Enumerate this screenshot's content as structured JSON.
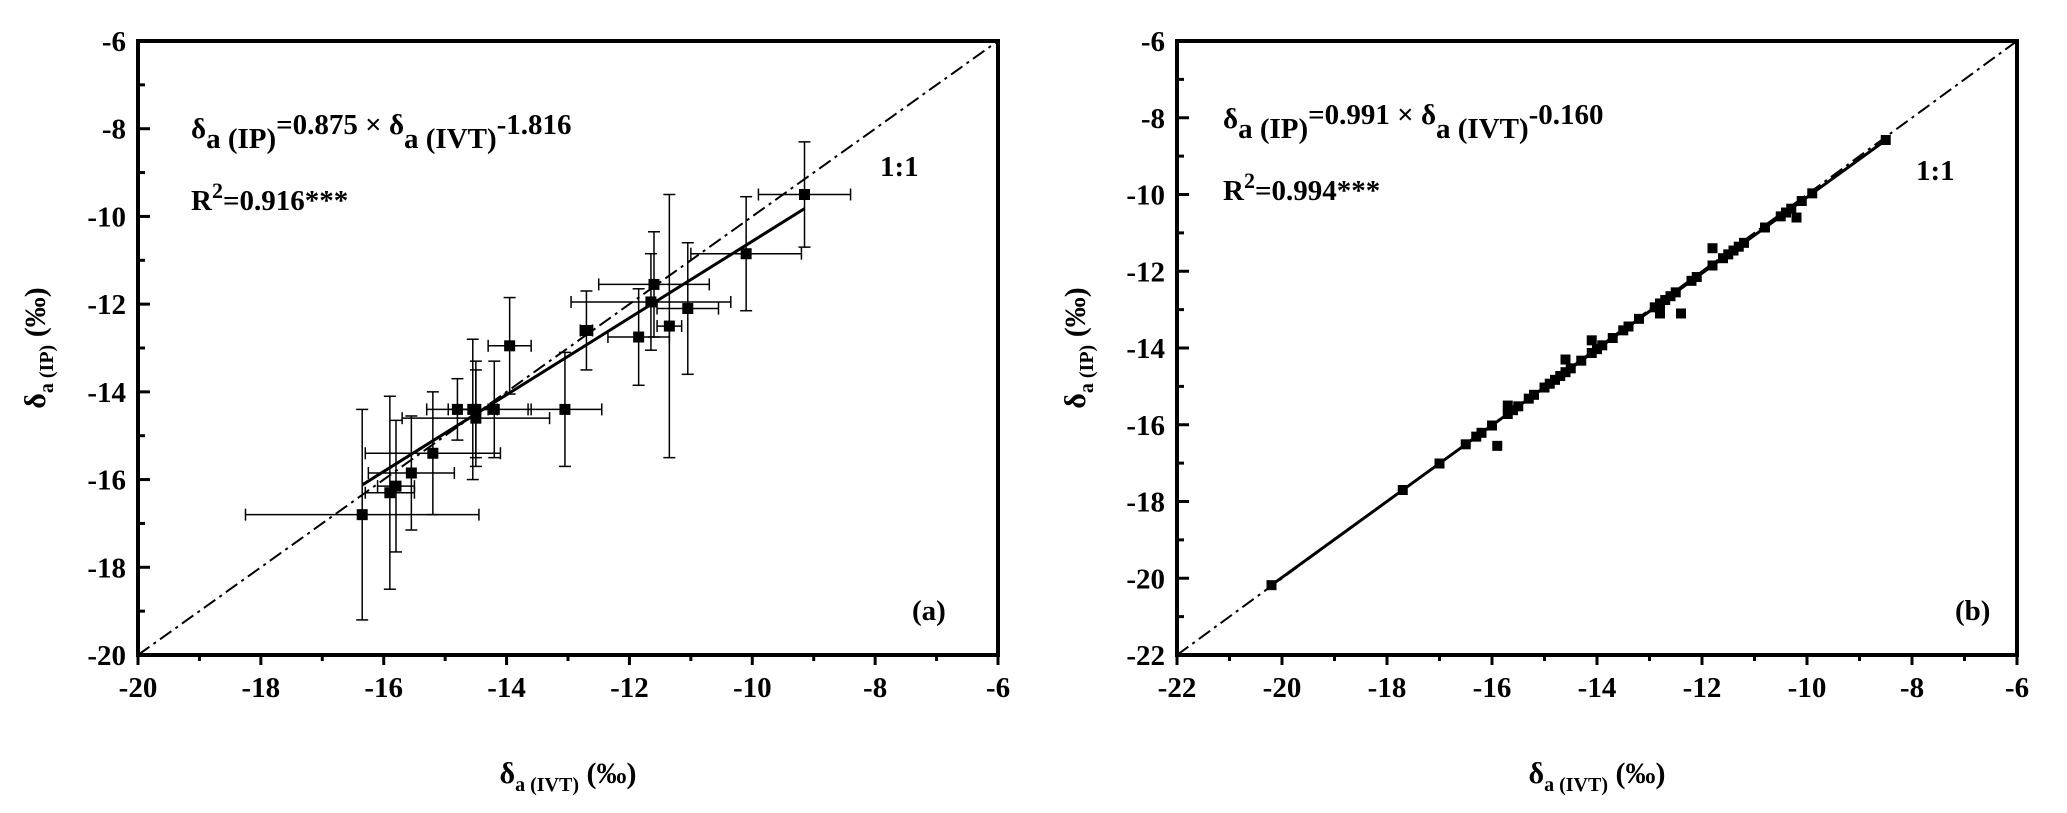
{
  "chart_data": [
    {
      "type": "scatter",
      "panel_label": "(a)",
      "xlabel": {
        "main": "δ",
        "sub": "a (IVT)",
        "unit": " (‰)"
      },
      "ylabel": {
        "main": "δ",
        "sub": "a (IP)",
        "unit": " (‰)"
      },
      "xlim": [
        -20,
        -6
      ],
      "ylim": [
        -20,
        -6
      ],
      "xticks": [
        "-20",
        "-18",
        "-16",
        "-14",
        "-12",
        "-10",
        "-8",
        "-6"
      ],
      "yticks": [
        "-20",
        "-18",
        "-16",
        "-14",
        "-12",
        "-10",
        "-8",
        "-6"
      ],
      "equation": {
        "lhs": "δ",
        "lhs_sub": "a (IP)",
        "mid": "=0.875 × δ",
        "rhs_sub": "a (IVT)",
        "const": "-1.816"
      },
      "r2": {
        "r": "R",
        "sup": "2",
        "value": "=0.916***"
      },
      "fit": {
        "slope": 0.875,
        "intercept": -1.816,
        "xrange": [
          -16.35,
          -9.15
        ]
      },
      "ref_line_label": "1:1",
      "points": [
        {
          "x": -16.35,
          "y": -16.8,
          "xerr": 1.9,
          "yerr": 2.4
        },
        {
          "x": -15.9,
          "y": -16.3,
          "xerr": 0.4,
          "yerr": 2.2
        },
        {
          "x": -15.8,
          "y": -16.15,
          "xerr": 0.3,
          "yerr": 1.5
        },
        {
          "x": -15.55,
          "y": -15.85,
          "xerr": 0.7,
          "yerr": 1.3
        },
        {
          "x": -15.2,
          "y": -15.4,
          "xerr": 1.1,
          "yerr": 1.4
        },
        {
          "x": -14.8,
          "y": -14.4,
          "xerr": 0.5,
          "yerr": 0.7
        },
        {
          "x": -14.55,
          "y": -14.4,
          "xerr": 0.4,
          "yerr": 1.6
        },
        {
          "x": -14.5,
          "y": -14.4,
          "xerr": 0.3,
          "yerr": 1.1
        },
        {
          "x": -14.5,
          "y": -14.6,
          "xerr": 1.2,
          "yerr": 1.1
        },
        {
          "x": -14.2,
          "y": -14.4,
          "xerr": 0.6,
          "yerr": 1.1
        },
        {
          "x": -13.95,
          "y": -12.95,
          "xerr": 0.35,
          "yerr": 1.1
        },
        {
          "x": -13.05,
          "y": -14.4,
          "xerr": 0.6,
          "yerr": 1.3
        },
        {
          "x": -12.7,
          "y": -12.6,
          "xerr": 0.1,
          "yerr": 0.9
        },
        {
          "x": -11.85,
          "y": -12.75,
          "xerr": 0.5,
          "yerr": 1.1
        },
        {
          "x": -11.65,
          "y": -11.95,
          "xerr": 1.3,
          "yerr": 1.1
        },
        {
          "x": -11.6,
          "y": -11.55,
          "xerr": 0.9,
          "yerr": 1.2
        },
        {
          "x": -11.35,
          "y": -12.5,
          "xerr": 0.2,
          "yerr": 3.0
        },
        {
          "x": -11.05,
          "y": -12.1,
          "xerr": 0.5,
          "yerr": 1.5
        },
        {
          "x": -10.1,
          "y": -10.85,
          "xerr": 0.9,
          "yerr": 1.3
        },
        {
          "x": -9.15,
          "y": -9.5,
          "xerr": 0.75,
          "yerr": 1.2
        }
      ]
    },
    {
      "type": "scatter",
      "panel_label": "(b)",
      "xlabel": {
        "main": "δ",
        "sub": "a (IVT)",
        "unit": " (‰)"
      },
      "ylabel": {
        "main": "δ",
        "sub": "a (IP)",
        "unit": " (‰)"
      },
      "xlim": [
        -22,
        -6
      ],
      "ylim": [
        -22,
        -6
      ],
      "xticks": [
        "-22",
        "-20",
        "-18",
        "-16",
        "-14",
        "-12",
        "-10",
        "-8",
        "-6"
      ],
      "yticks": [
        "-22",
        "-20",
        "-18",
        "-16",
        "-14",
        "-12",
        "-10",
        "-8",
        "-6"
      ],
      "equation": {
        "lhs": "δ",
        "lhs_sub": "a (IP)",
        "mid": "=0.991 × δ",
        "rhs_sub": "a (IVT)",
        "const": "-0.160"
      },
      "r2": {
        "r": "R",
        "sup": "2",
        "value": "=0.994***"
      },
      "fit": {
        "slope": 0.991,
        "intercept": -0.16,
        "xrange": [
          -20.2,
          -8.5
        ]
      },
      "ref_line_label": "1:1",
      "points": [
        {
          "x": -20.2,
          "y": -20.18
        },
        {
          "x": -17.7,
          "y": -17.7
        },
        {
          "x": -17.0,
          "y": -17.01
        },
        {
          "x": -16.5,
          "y": -16.51
        },
        {
          "x": -16.3,
          "y": -16.31
        },
        {
          "x": -16.2,
          "y": -16.21
        },
        {
          "x": -16.0,
          "y": -16.02
        },
        {
          "x": -15.9,
          "y": -16.55
        },
        {
          "x": -15.7,
          "y": -15.72
        },
        {
          "x": -15.7,
          "y": -15.5
        },
        {
          "x": -15.6,
          "y": -15.62
        },
        {
          "x": -15.5,
          "y": -15.52
        },
        {
          "x": -15.3,
          "y": -15.32
        },
        {
          "x": -15.2,
          "y": -15.22
        },
        {
          "x": -15.0,
          "y": -15.03
        },
        {
          "x": -14.9,
          "y": -14.93
        },
        {
          "x": -14.8,
          "y": -14.83
        },
        {
          "x": -14.7,
          "y": -14.73
        },
        {
          "x": -14.6,
          "y": -14.63
        },
        {
          "x": -14.6,
          "y": -14.3
        },
        {
          "x": -14.5,
          "y": -14.53
        },
        {
          "x": -14.3,
          "y": -14.33
        },
        {
          "x": -14.1,
          "y": -14.13
        },
        {
          "x": -14.1,
          "y": -13.8
        },
        {
          "x": -14.0,
          "y": -14.03
        },
        {
          "x": -13.9,
          "y": -13.93
        },
        {
          "x": -13.7,
          "y": -13.74
        },
        {
          "x": -13.5,
          "y": -13.54
        },
        {
          "x": -13.4,
          "y": -13.44
        },
        {
          "x": -13.2,
          "y": -13.24
        },
        {
          "x": -12.9,
          "y": -12.94
        },
        {
          "x": -12.8,
          "y": -12.84
        },
        {
          "x": -12.8,
          "y": -13.1
        },
        {
          "x": -12.7,
          "y": -12.75
        },
        {
          "x": -12.6,
          "y": -12.65
        },
        {
          "x": -12.5,
          "y": -12.55
        },
        {
          "x": -12.4,
          "y": -13.1
        },
        {
          "x": -12.2,
          "y": -12.25
        },
        {
          "x": -12.1,
          "y": -12.15
        },
        {
          "x": -11.8,
          "y": -11.85
        },
        {
          "x": -11.8,
          "y": -11.4
        },
        {
          "x": -11.6,
          "y": -11.66
        },
        {
          "x": -11.5,
          "y": -11.56
        },
        {
          "x": -11.4,
          "y": -11.46
        },
        {
          "x": -11.3,
          "y": -11.36
        },
        {
          "x": -11.2,
          "y": -11.26
        },
        {
          "x": -10.8,
          "y": -10.86
        },
        {
          "x": -10.5,
          "y": -10.57
        },
        {
          "x": -10.4,
          "y": -10.47
        },
        {
          "x": -10.3,
          "y": -10.37
        },
        {
          "x": -10.2,
          "y": -10.6
        },
        {
          "x": -10.1,
          "y": -10.17
        },
        {
          "x": -9.9,
          "y": -9.97
        },
        {
          "x": -8.5,
          "y": -8.58
        }
      ]
    }
  ]
}
